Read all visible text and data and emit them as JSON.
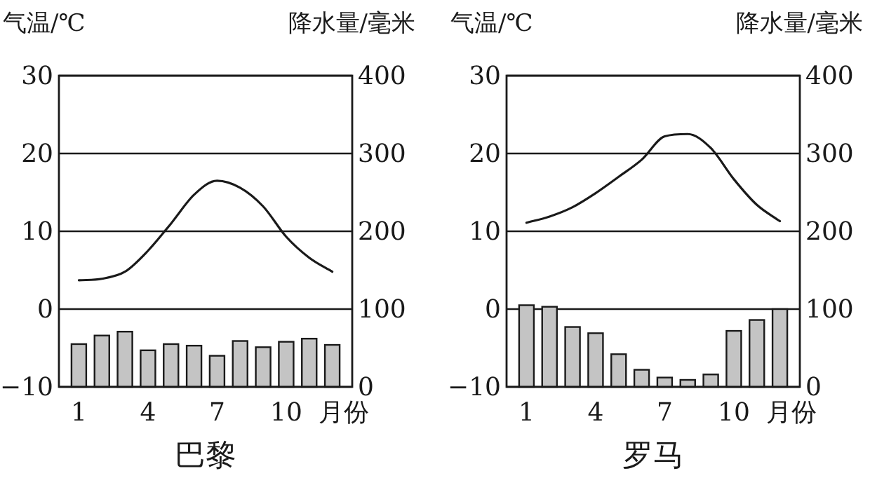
{
  "chart_data": [
    {
      "type": "bar",
      "title": "巴黎",
      "xlabel": "月份",
      "ylabel": "气温/℃",
      "y2label": "降水量/毫米",
      "categories": [
        "1",
        null,
        null,
        "4",
        null,
        null,
        "7",
        null,
        null,
        "10",
        null,
        null
      ],
      "ylim": [
        -10,
        30
      ],
      "yticks": [
        -10,
        0,
        10,
        20,
        30
      ],
      "y2lim": [
        0,
        400
      ],
      "y2ticks": [
        0,
        100,
        200,
        300,
        400
      ],
      "grid": "y",
      "series": [
        {
          "axis": "y2",
          "color": "#c4c4c4",
          "values": [
            55,
            66,
            71,
            47,
            55,
            53,
            40,
            59,
            51,
            58,
            62,
            54
          ]
        },
        {
          "type": "line",
          "color": "#1a1a1a",
          "values": [
            3.7,
            3.9,
            4.8,
            7.5,
            11,
            14.7,
            16.5,
            15.6,
            13.2,
            9.3,
            6.6,
            4.8
          ]
        }
      ]
    },
    {
      "type": "bar",
      "title": "罗马",
      "xlabel": "月份",
      "ylabel": "气温/℃",
      "y2label": "降水量/毫米",
      "categories": [
        "1",
        null,
        null,
        "4",
        null,
        null,
        "7",
        null,
        null,
        "10",
        null,
        null
      ],
      "ylim": [
        -10,
        30
      ],
      "yticks": [
        -10,
        0,
        10,
        20,
        30
      ],
      "y2lim": [
        0,
        400
      ],
      "y2ticks": [
        0,
        100,
        200,
        300,
        400
      ],
      "grid": "y",
      "series": [
        {
          "axis": "y2",
          "color": "#c4c4c4",
          "values": [
            105,
            103,
            77,
            69,
            42,
            22,
            12,
            9,
            16,
            72,
            86,
            100
          ]
        },
        {
          "type": "line",
          "color": "#1a1a1a",
          "values": [
            11.1,
            11.9,
            13.1,
            14.9,
            17,
            19.2,
            22.2,
            22.5,
            20.7,
            16.7,
            13.4,
            11.3
          ]
        }
      ]
    }
  ]
}
